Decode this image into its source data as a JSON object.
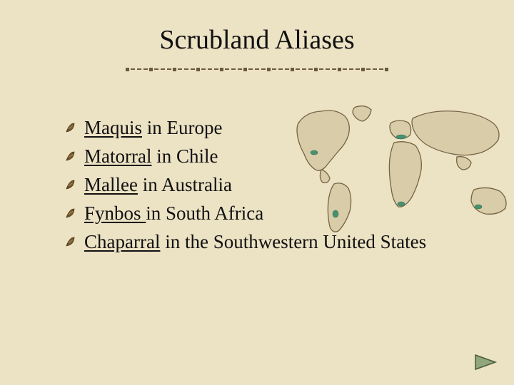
{
  "title": "Scrubland Aliases",
  "colors": {
    "background": "#ece2c4",
    "text": "#111111",
    "divider": "#6b5a3a",
    "bullet_dark": "#4a3a1e",
    "bullet_mid": "#7a5c2e",
    "bullet_light": "#c9a86a",
    "map_outline": "#6b5a3a",
    "map_fill": "#d8cba6",
    "map_highlight": "#3a8a6a",
    "nav_fill": "#8fa77a",
    "nav_stroke": "#4a5a3a"
  },
  "typography": {
    "title_fontsize": 38,
    "list_fontsize": 27,
    "font_family": "Georgia, Times New Roman, serif"
  },
  "items": [
    {
      "term": "Maquis",
      "rest": " in Europe"
    },
    {
      "term": "Matorral",
      "rest": " in Chile"
    },
    {
      "term": "Mallee",
      "rest": " in Australia"
    },
    {
      "term": "Fynbos ",
      "rest": "in South Africa"
    },
    {
      "term": "Chaparral",
      "rest": " in the Southwestern United States"
    }
  ],
  "divider": {
    "segments": 12
  },
  "map": {
    "position": "right-of-list-behind-text",
    "highlights": [
      "Mediterranean",
      "California",
      "Chile-central",
      "South-Africa-cape",
      "SW-Australia"
    ]
  }
}
